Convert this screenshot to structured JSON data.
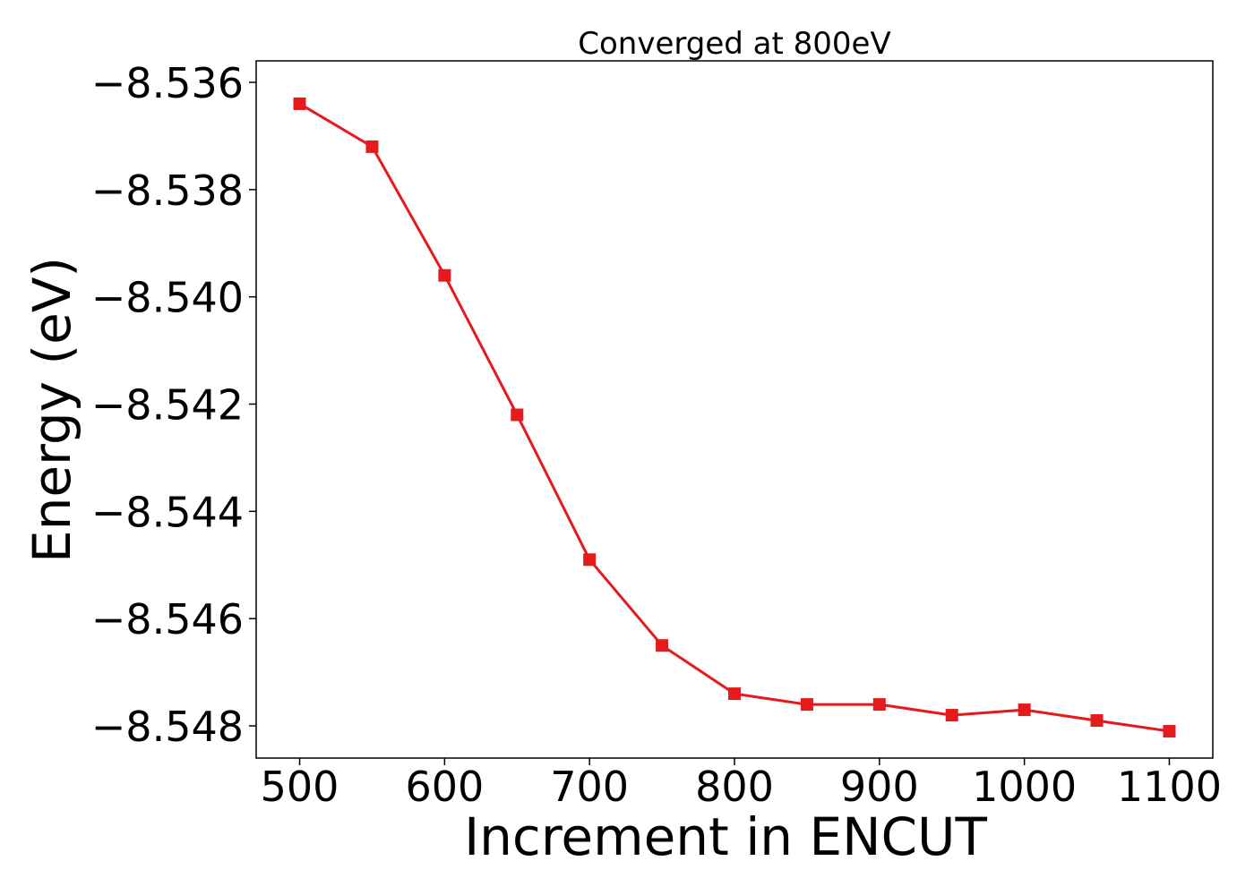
{
  "chart_data": {
    "type": "line",
    "title": "Converged at 800eV",
    "xlabel": "Increment in ENCUT",
    "ylabel": "Energy (eV)",
    "xlim": [
      470,
      1130
    ],
    "ylim": [
      -8.5486,
      -8.5356
    ],
    "xticks": [
      500,
      600,
      700,
      800,
      900,
      1000,
      1100
    ],
    "yticks": [
      -8.536,
      -8.538,
      -8.54,
      -8.542,
      -8.544,
      -8.546,
      -8.548
    ],
    "ytick_labels": [
      "−8.536",
      "−8.538",
      "−8.540",
      "−8.542",
      "−8.544",
      "−8.546",
      "−8.548"
    ],
    "grid": false,
    "series": [
      {
        "color": "#e41a1c",
        "marker": "square",
        "x": [
          500,
          550,
          600,
          650,
          700,
          750,
          800,
          850,
          900,
          950,
          1000,
          1050,
          1100
        ],
        "y": [
          -8.5364,
          -8.5372,
          -8.5396,
          -8.5422,
          -8.5449,
          -8.5465,
          -8.5474,
          -8.5476,
          -8.5476,
          -8.5478,
          -8.5477,
          -8.5479,
          -8.5481
        ]
      }
    ]
  }
}
